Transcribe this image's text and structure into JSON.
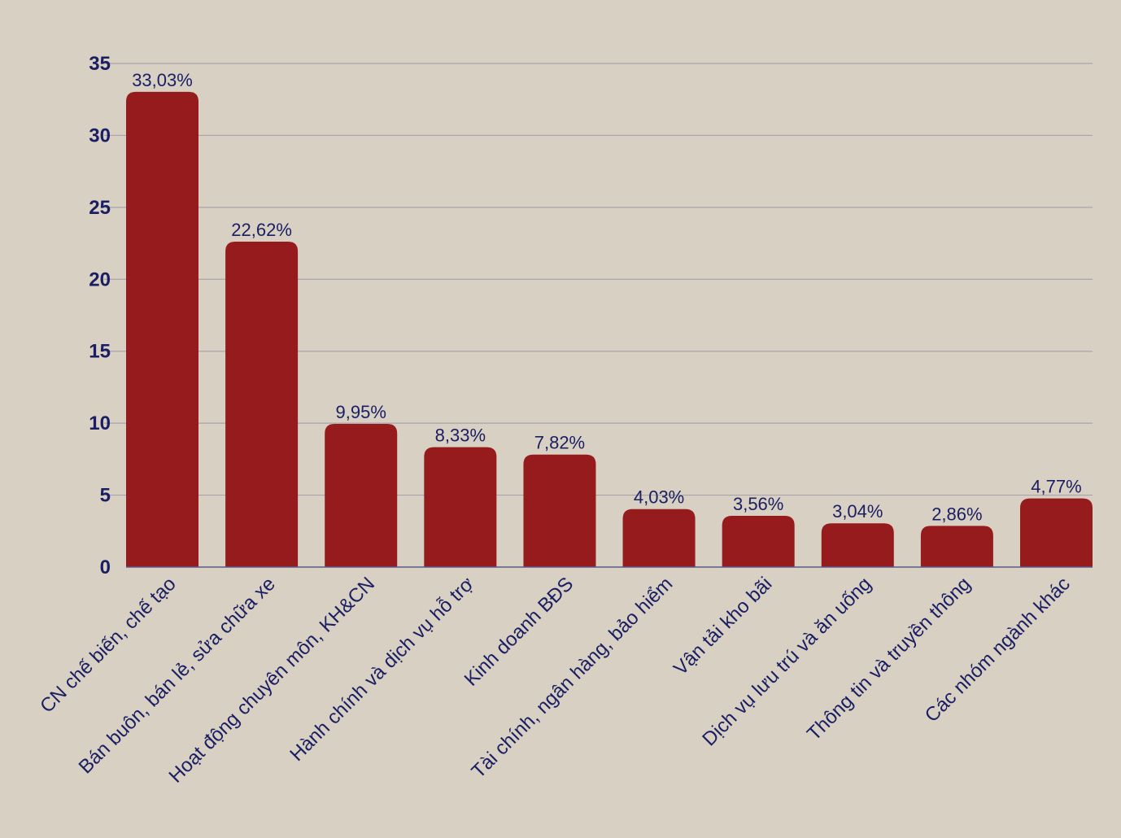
{
  "colors": {
    "background": "#d8d0c2",
    "bar": "#951b1c",
    "text": "#1a1e63",
    "grid": "#a8a3ac",
    "axis": "#5a5a8a"
  },
  "chart_data": {
    "type": "bar",
    "title": "",
    "xlabel": "",
    "ylabel": "",
    "ylim": [
      0,
      35
    ],
    "yticks": [
      0,
      5,
      10,
      15,
      20,
      25,
      30,
      35
    ],
    "grid": true,
    "legend": "none",
    "categories": [
      "CN chế biến, chế tạo",
      "Bán buôn, bán lẻ, sửa chữa xe",
      "Hoạt động chuyên môn, KH&CN",
      "Hành chính và dịch vụ hỗ trợ",
      "Kinh doanh BĐS",
      "Tài chính, ngân hàng, bảo hiểm",
      "Vận tải kho bãi",
      "Dịch vụ lưu trú và ăn uống",
      "Thông tin và truyền thông",
      "Các nhóm ngành khác"
    ],
    "values": [
      33.03,
      22.62,
      9.95,
      8.33,
      7.82,
      4.03,
      3.56,
      3.04,
      2.86,
      4.77
    ],
    "data_labels": [
      "33,03%",
      "22,62%",
      "9,95%",
      "8,33%",
      "7,82%",
      "4,03%",
      "3,56%",
      "3,04%",
      "2,86%",
      "4,77%"
    ]
  }
}
